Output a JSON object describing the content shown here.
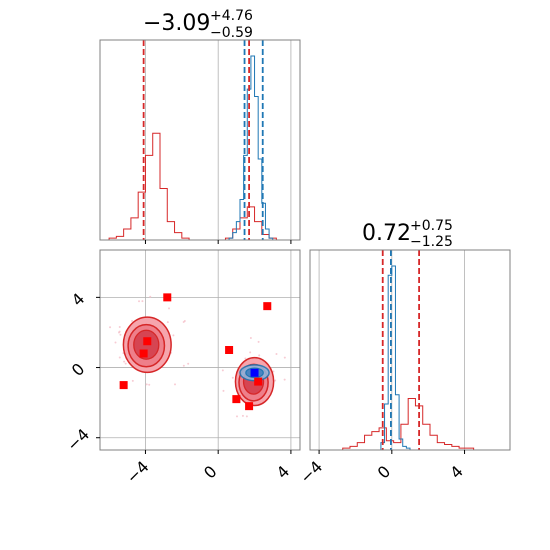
{
  "colors": {
    "red": "#d62728",
    "blue": "#1f77b4",
    "marker_red": "#ff0000",
    "marker_blue": "#0000ff",
    "grid": "#b0b0b0"
  },
  "titles": {
    "top_left": {
      "main": "−3.09",
      "plus": "+4.76",
      "minus": "−0.59"
    },
    "bottom_right": {
      "main": "0.72",
      "plus": "+0.75",
      "minus": "−1.25"
    }
  },
  "chart_data": [
    {
      "type": "histogram",
      "panel": "top-left marginal",
      "xlim": [
        -6.5,
        4.5
      ],
      "vlines_red": [
        -4.1,
        1.7
      ],
      "vlines_blue": [
        1.45,
        2.45
      ],
      "series_red": {
        "bin_edges": [
          -6.0,
          -5.6,
          -5.2,
          -4.8,
          -4.4,
          -4.0,
          -3.6,
          -3.2,
          -2.8,
          -2.4,
          -2.0,
          -1.6,
          -1.2,
          -0.8,
          -0.4,
          0.0,
          0.4,
          0.8,
          1.2,
          1.6,
          2.0,
          2.4,
          2.8,
          3.2
        ],
        "counts": [
          0.01,
          0.02,
          0.06,
          0.12,
          0.26,
          0.46,
          0.58,
          0.28,
          0.1,
          0.04,
          0.01,
          0.0,
          0.0,
          0.0,
          0.0,
          0.0,
          0.01,
          0.06,
          0.12,
          0.18,
          0.1,
          0.03,
          0.01
        ]
      },
      "series_blue": {
        "bin_edges": [
          0.6,
          0.8,
          1.0,
          1.2,
          1.4,
          1.6,
          1.8,
          2.0,
          2.2,
          2.4,
          2.6,
          2.8,
          3.0
        ],
        "counts": [
          0.01,
          0.04,
          0.1,
          0.22,
          0.46,
          0.82,
          1.0,
          0.78,
          0.44,
          0.2,
          0.06,
          0.01
        ]
      }
    },
    {
      "type": "contour-scatter",
      "panel": "bottom-left 2D",
      "xlim": [
        -6.5,
        4.5
      ],
      "ylim": [
        -4.7,
        6.7
      ],
      "xticks": [
        "−4",
        "0",
        "4"
      ],
      "yticks": [
        "−4",
        "0",
        "4"
      ],
      "red_points": [
        [
          -2.8,
          4.0
        ],
        [
          -3.9,
          1.5
        ],
        [
          -4.1,
          0.8
        ],
        [
          -5.2,
          -1.0
        ],
        [
          0.6,
          1.0
        ],
        [
          1.0,
          -1.8
        ],
        [
          1.7,
          -2.2
        ],
        [
          2.2,
          -0.8
        ],
        [
          2.7,
          3.5
        ]
      ],
      "blue_point": [
        2.0,
        -0.3
      ],
      "red_blobs": [
        {
          "center": [
            -3.9,
            1.3
          ],
          "radius": [
            1.25,
            1.5
          ]
        },
        {
          "center": [
            2.0,
            -0.8
          ],
          "radius": [
            1.0,
            1.3
          ]
        }
      ],
      "blue_blob": {
        "center": [
          2.0,
          -0.3
        ],
        "radius": [
          0.8,
          0.45
        ]
      }
    },
    {
      "type": "histogram",
      "panel": "bottom-right marginal",
      "xlim": [
        -4.5,
        6.5
      ],
      "xticks": [
        "−4",
        "0",
        "4"
      ],
      "vlines_red": [
        -0.5,
        1.5
      ],
      "vlines_blue": [
        -0.05
      ],
      "series_red": {
        "bin_edges": [
          -3.5,
          -3.1,
          -2.7,
          -2.3,
          -1.9,
          -1.5,
          -1.1,
          -0.7,
          -0.3,
          0.1,
          0.5,
          0.9,
          1.3,
          1.7,
          2.1,
          2.5,
          2.9,
          3.3,
          3.7,
          4.1,
          4.5
        ],
        "counts": [
          0.0,
          0.0,
          0.01,
          0.02,
          0.04,
          0.08,
          0.1,
          0.12,
          0.05,
          0.04,
          0.14,
          0.28,
          0.24,
          0.14,
          0.08,
          0.04,
          0.03,
          0.02,
          0.01,
          0.01
        ]
      },
      "series_blue": {
        "bin_edges": [
          -0.6,
          -0.4,
          -0.2,
          0.0,
          0.2,
          0.4,
          0.6,
          0.8,
          1.0
        ],
        "counts": [
          0.04,
          0.25,
          0.95,
          1.0,
          0.3,
          0.06,
          0.02,
          0.01
        ]
      }
    }
  ]
}
